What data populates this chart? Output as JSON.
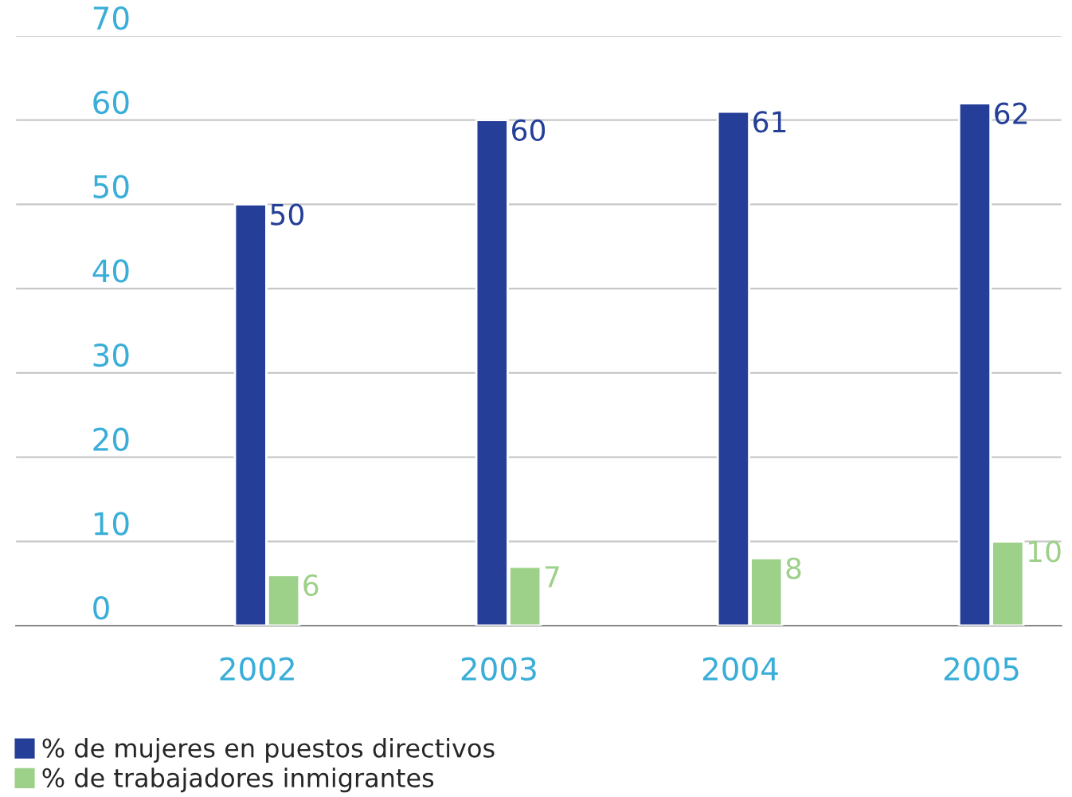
{
  "chart_data": {
    "type": "bar",
    "categories": [
      "2002",
      "2003",
      "2004",
      "2005"
    ],
    "series": [
      {
        "name": "% de mujeres en puestos directivos",
        "color": "#253f98",
        "values": [
          50,
          60,
          61,
          62
        ]
      },
      {
        "name": "% de trabajadores inmigrantes",
        "color": "#9dd189",
        "values": [
          6,
          7,
          8,
          10
        ]
      }
    ],
    "ylim": [
      0,
      70
    ],
    "yticks": [
      0,
      10,
      20,
      30,
      40,
      50,
      60,
      70
    ],
    "grid": "y",
    "legend": "bottom left",
    "data_labels": true
  }
}
